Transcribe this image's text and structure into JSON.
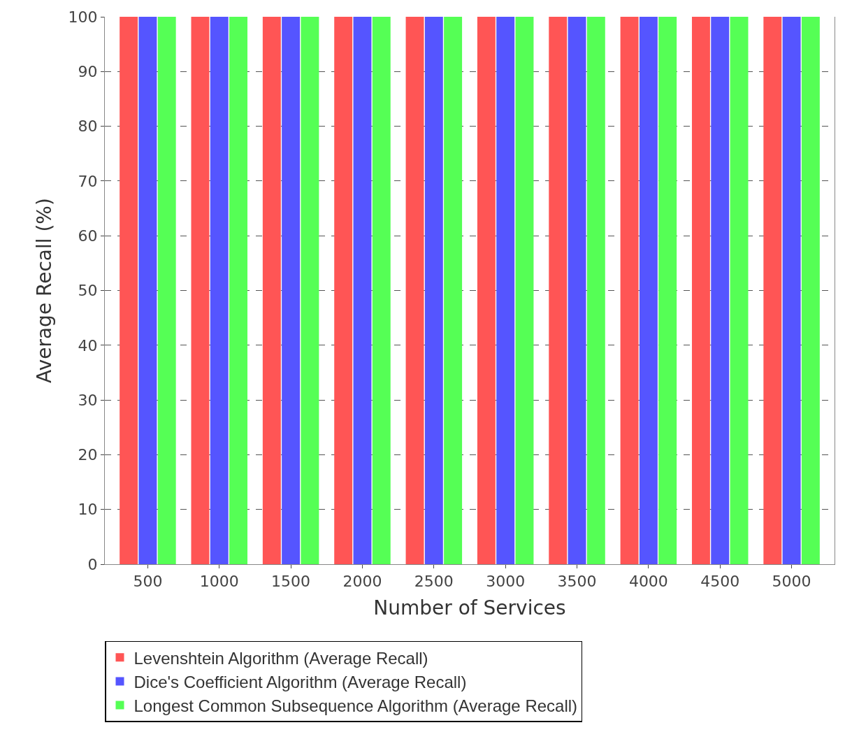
{
  "chart_data": {
    "type": "bar",
    "xlabel": "Number of Services",
    "ylabel": "Average Recall (%)",
    "categories": [
      "500",
      "1000",
      "1500",
      "2000",
      "2500",
      "3000",
      "3500",
      "4000",
      "4500",
      "5000"
    ],
    "series": [
      {
        "name": "Levenshtein Algorithm (Average Recall)",
        "color": "#ff5555",
        "values": [
          100,
          100,
          100,
          100,
          100,
          100,
          100,
          100,
          100,
          100
        ]
      },
      {
        "name": "Dice's Coefficient Algorithm (Average Recall)",
        "color": "#5555ff",
        "values": [
          100,
          100,
          100,
          100,
          100,
          100,
          100,
          100,
          100,
          100
        ]
      },
      {
        "name": "Longest Common Subsequence Algorithm (Average Recall)",
        "color": "#55ff55",
        "values": [
          100,
          100,
          100,
          100,
          100,
          100,
          100,
          100,
          100,
          100
        ]
      }
    ],
    "ylim": [
      0,
      100
    ],
    "yticks": [
      0,
      10,
      20,
      30,
      40,
      50,
      60,
      70,
      80,
      90,
      100
    ],
    "grid": "y",
    "legend": "bottom"
  }
}
